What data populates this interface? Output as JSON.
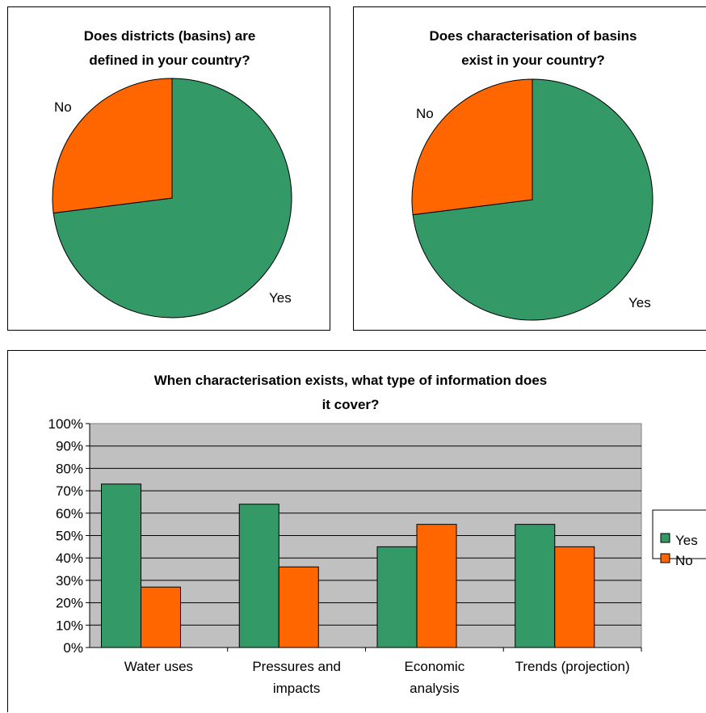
{
  "colors": {
    "yes": "#339966",
    "no": "#FF6600",
    "plot_bg": "#C0C0C0"
  },
  "chart_data": [
    {
      "type": "pie",
      "title": [
        "Does districts (basins) are",
        "defined in your country?"
      ],
      "labels": [
        "Yes",
        "No"
      ],
      "values": [
        73,
        27
      ]
    },
    {
      "type": "pie",
      "title": [
        "Does characterisation of basins",
        "exist in your country?"
      ],
      "labels": [
        "Yes",
        "No"
      ],
      "values": [
        73,
        27
      ]
    },
    {
      "type": "bar",
      "title": [
        "When characterisation exists, what type of information does",
        "it cover?"
      ],
      "categories": [
        [
          "Water uses"
        ],
        [
          "Pressures and",
          "impacts"
        ],
        [
          "Economic",
          "analysis"
        ],
        [
          "Trends (projection)"
        ]
      ],
      "series": [
        {
          "name": "Yes",
          "values": [
            73,
            64,
            45,
            55
          ]
        },
        {
          "name": "No",
          "values": [
            27,
            36,
            55,
            45
          ]
        }
      ],
      "yticks": [
        "0%",
        "10%",
        "20%",
        "30%",
        "40%",
        "50%",
        "60%",
        "70%",
        "80%",
        "90%",
        "100%"
      ],
      "ylim": [
        0,
        100
      ],
      "grid": true,
      "legend": "right"
    }
  ]
}
